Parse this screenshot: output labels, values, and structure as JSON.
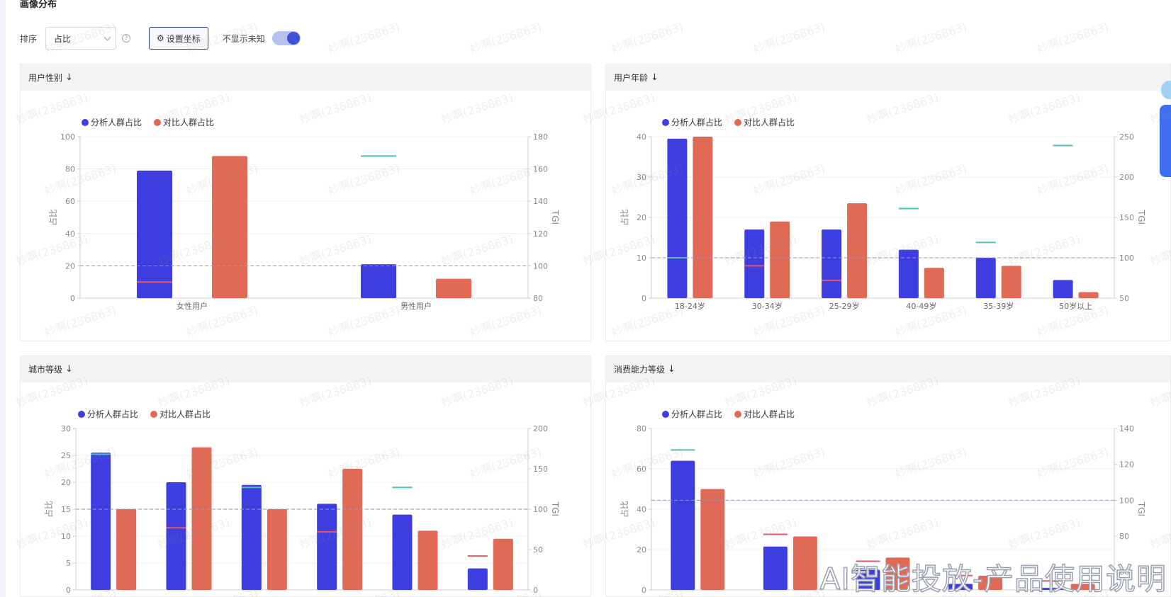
{
  "page_title": "画像分布",
  "toolbar": {
    "sort_label": "排序",
    "sort_value": "占比",
    "help_icon": "question-circle-icon",
    "axis_button_icon": "gear-icon",
    "axis_button_label": "设置坐标",
    "hide_unknown_label": "不显示未知",
    "hide_unknown_on": true,
    "toggle_color": "#3b55d6"
  },
  "watermark_text": "妙啊(236863)",
  "overlay_text": "AI智能投放-产品使用说明",
  "colors": {
    "analysis": "#3d3de0",
    "compare": "#e06a55",
    "tgi_above": "#4fc1b3",
    "tgi_below": "#e05a6a",
    "baseline": "#8e9ac8"
  },
  "legend": {
    "analysis": "分析人群占比",
    "compare": "对比人群占比"
  },
  "panels": [
    {
      "header": "用户性别",
      "chart_data": {
        "type": "bar",
        "categories": [
          "女性用户",
          "男性用户"
        ],
        "series": [
          {
            "name": "分析人群占比",
            "values": [
              79,
              21
            ]
          },
          {
            "name": "对比人群占比",
            "values": [
              88,
              12
            ]
          }
        ],
        "tgi": [
          90,
          168
        ],
        "ylabel": "占比",
        "y2label": "TGI",
        "ylim": [
          0,
          100
        ],
        "yticks": [
          0,
          20,
          40,
          60,
          80,
          100
        ],
        "y2lim": [
          80,
          180
        ],
        "y2ticks": [
          80,
          100,
          120,
          140,
          160,
          180
        ],
        "baseline_tgi": 100
      }
    },
    {
      "header": "用户年龄",
      "chart_data": {
        "type": "bar",
        "categories": [
          "18-24岁",
          "30-34岁",
          "25-29岁",
          "40-49岁",
          "35-39岁",
          "50岁以上"
        ],
        "series": [
          {
            "name": "分析人群占比",
            "values": [
              39.5,
              17,
              17,
              12,
              10,
              4.5
            ]
          },
          {
            "name": "对比人群占比",
            "values": [
              40,
              19,
              23.5,
              7.5,
              8,
              1.5
            ]
          }
        ],
        "tgi": [
          100,
          90,
          72,
          161,
          119,
          239
        ],
        "ylabel": "占比",
        "y2label": "TGI",
        "ylim": [
          0,
          40
        ],
        "yticks": [
          0,
          10,
          20,
          30,
          40
        ],
        "y2lim": [
          50,
          250
        ],
        "y2ticks": [
          50,
          100,
          150,
          200,
          250
        ],
        "baseline_tgi": 100
      }
    },
    {
      "header": "城市等级",
      "chart_data": {
        "type": "bar",
        "categories": [
          "",
          "",
          "",
          "",
          "",
          ""
        ],
        "series": [
          {
            "name": "分析人群占比",
            "values": [
              25.5,
              20,
              19.5,
              16,
              14,
              4
            ]
          },
          {
            "name": "对比人群占比",
            "values": [
              15,
              26.5,
              15,
              22.5,
              11,
              9.5
            ]
          }
        ],
        "tgi": [
          168,
          77,
          127,
          72,
          127,
          42
        ],
        "ylabel": "占比",
        "y2label": "TGI",
        "ylim": [
          0,
          30
        ],
        "yticks": [
          0,
          5,
          10,
          15,
          20,
          25,
          30
        ],
        "y2lim": [
          0,
          200
        ],
        "y2ticks": [
          0,
          50,
          100,
          150,
          200
        ],
        "baseline_tgi": 100
      }
    },
    {
      "header": "消费能力等级",
      "chart_data": {
        "type": "bar",
        "categories": [
          "",
          "",
          "",
          "",
          ""
        ],
        "series": [
          {
            "name": "分析人群占比",
            "values": [
              64,
              21.5,
              10,
              3,
              1
            ]
          },
          {
            "name": "对比人群占比",
            "values": [
              50,
              26.5,
              16,
              7,
              3
            ]
          }
        ],
        "tgi": [
          128,
          81,
          66,
          58,
          55
        ],
        "ylabel": "占比",
        "y2label": "TGI",
        "ylim": [
          0,
          80
        ],
        "yticks": [
          0,
          20,
          40,
          60,
          80
        ],
        "y2lim": [
          50,
          140
        ],
        "y2ticks": [
          60,
          80,
          100,
          120,
          140
        ],
        "baseline_tgi": 100
      }
    }
  ]
}
